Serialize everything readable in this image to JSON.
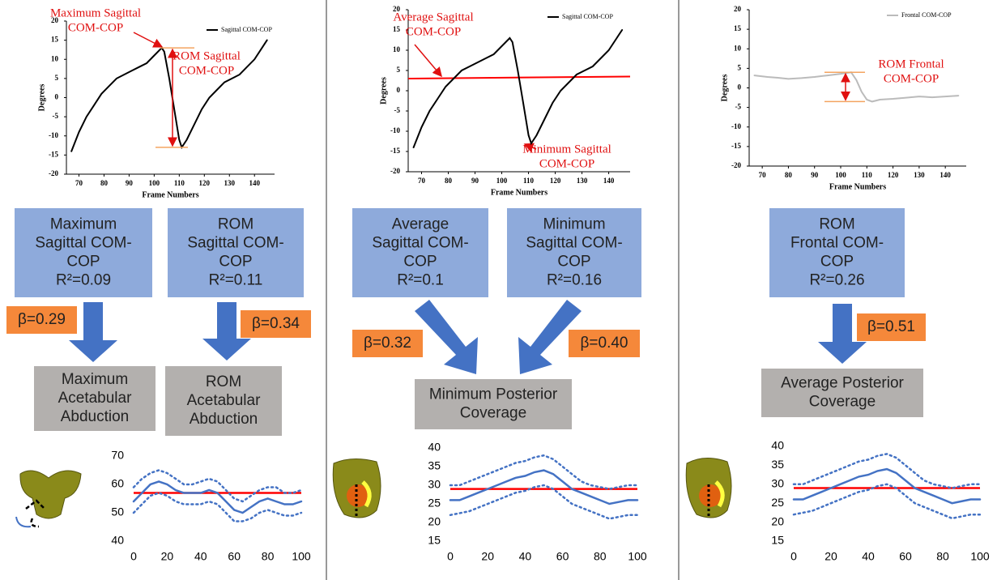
{
  "chart_data": [
    {
      "type": "line",
      "xlabel": "Frame Numbers",
      "ylabel": "Degrees",
      "legend": "upper right",
      "x": [
        67,
        70,
        73,
        76,
        79,
        82,
        85,
        88,
        91,
        94,
        97,
        100,
        103,
        104,
        106,
        108,
        110,
        111,
        113,
        116,
        119,
        122,
        125,
        128,
        131,
        134,
        137,
        140,
        143,
        145
      ],
      "series": [
        {
          "name": "Sagittal COM-COP",
          "color": "#000000",
          "values": [
            -14,
            -9,
            -5,
            -2,
            1,
            3,
            5,
            6,
            7,
            8,
            9,
            11,
            13,
            12,
            5,
            -3,
            -11,
            -13,
            -11,
            -7,
            -3,
            0,
            2,
            4,
            5,
            6,
            8,
            10,
            13,
            15
          ]
        }
      ],
      "xlim": [
        65,
        148
      ],
      "ylim": [
        -20,
        20
      ],
      "xticks": [
        70,
        80,
        90,
        100,
        110,
        120,
        130,
        140
      ],
      "yticks": [
        -20,
        -15,
        -10,
        -5,
        0,
        5,
        10,
        15,
        20
      ],
      "range_marks": {
        "values": [
          13,
          -13
        ],
        "color": "#f4a460"
      },
      "annotations": [
        {
          "lines": [
            "Maximum Sagittal",
            "COM-COP"
          ],
          "color": "#e01010"
        },
        {
          "lines": [
            "ROM  Sagittal",
            "COM-COP"
          ],
          "color": "#e01010"
        }
      ]
    },
    {
      "type": "line",
      "xlabel": "Frame Numbers",
      "ylabel": "Degrees",
      "legend": "upper right",
      "x": [
        67,
        70,
        73,
        76,
        79,
        82,
        85,
        88,
        91,
        94,
        97,
        100,
        103,
        104,
        106,
        108,
        110,
        111,
        113,
        116,
        119,
        122,
        125,
        128,
        131,
        134,
        137,
        140,
        143,
        145
      ],
      "series": [
        {
          "name": "Sagittal COM-COP",
          "color": "#000000",
          "values": [
            -14,
            -9,
            -5,
            -2,
            1,
            3,
            5,
            6,
            7,
            8,
            9,
            11,
            13,
            12,
            5,
            -3,
            -11,
            -13,
            -11,
            -7,
            -3,
            0,
            2,
            4,
            5,
            6,
            8,
            10,
            13,
            15
          ]
        }
      ],
      "xlim": [
        65,
        148
      ],
      "ylim": [
        -20,
        20
      ],
      "xticks": [
        70,
        80,
        90,
        100,
        110,
        120,
        130,
        140
      ],
      "yticks": [
        -20,
        -15,
        -10,
        -5,
        0,
        5,
        10,
        15,
        20
      ],
      "reference_line": {
        "values": [
          3,
          3.5
        ],
        "color": "#ff0000"
      },
      "annotations": [
        {
          "lines": [
            "Average Sagittal",
            "COM-COP"
          ],
          "color": "#e01010"
        },
        {
          "lines": [
            "Minimum Sagittal",
            "COM-COP"
          ],
          "color": "#e01010"
        }
      ]
    },
    {
      "type": "line",
      "xlabel": "Frame Numbers",
      "ylabel": "Degrees",
      "legend": "upper right",
      "x": [
        67,
        72,
        76,
        80,
        85,
        90,
        95,
        100,
        104,
        106,
        108,
        110,
        112,
        115,
        120,
        125,
        130,
        135,
        140,
        145
      ],
      "series": [
        {
          "name": "Frontal COM-COP",
          "color": "#bbbbbb",
          "values": [
            3.2,
            2.8,
            2.6,
            2.3,
            2.5,
            2.8,
            3.2,
            3.6,
            4,
            2,
            -1,
            -3,
            -3.5,
            -3,
            -2.8,
            -2.5,
            -2.2,
            -2.4,
            -2.2,
            -2
          ]
        }
      ],
      "xlim": [
        65,
        148
      ],
      "ylim": [
        -20,
        20
      ],
      "xticks": [
        70,
        80,
        90,
        100,
        110,
        120,
        130,
        140
      ],
      "yticks": [
        -20,
        -15,
        -10,
        -5,
        0,
        5,
        10,
        15,
        20
      ],
      "range_marks": {
        "values": [
          4,
          -3.5
        ],
        "color": "#f4a460"
      },
      "annotations": [
        {
          "lines": [
            "ROM  Frontal",
            "COM-COP"
          ],
          "color": "#e01010"
        }
      ]
    },
    {
      "type": "line",
      "x": [
        0,
        5,
        10,
        15,
        20,
        25,
        30,
        35,
        40,
        45,
        50,
        55,
        60,
        65,
        70,
        75,
        80,
        85,
        90,
        95,
        100
      ],
      "series": [
        {
          "color": "#4472c4",
          "values": [
            54,
            57,
            60,
            61,
            60,
            58,
            57,
            57,
            57,
            58,
            57,
            54,
            51,
            50,
            52,
            54,
            55,
            54,
            53,
            53,
            54
          ]
        },
        {
          "color": "#4472c4",
          "dash": "dot",
          "values": [
            59,
            62,
            64,
            65,
            64,
            62,
            60,
            60,
            61,
            62,
            61,
            58,
            55,
            54,
            56,
            58,
            59,
            59,
            57,
            57,
            58
          ]
        },
        {
          "color": "#4472c4",
          "dash": "dot",
          "values": [
            50,
            53,
            56,
            57,
            56,
            54,
            53,
            53,
            53,
            54,
            53,
            50,
            47,
            47,
            48,
            50,
            51,
            50,
            49,
            49,
            50
          ]
        }
      ],
      "reference_line": {
        "values": [
          57,
          57
        ],
        "color": "#ff0000"
      },
      "xlim": [
        0,
        100
      ],
      "ylim": [
        40,
        70
      ],
      "xticks": [
        0,
        20,
        40,
        60,
        80,
        100
      ],
      "yticks": [
        40,
        50,
        60,
        70
      ]
    },
    {
      "type": "line",
      "x": [
        0,
        5,
        10,
        15,
        20,
        25,
        30,
        35,
        40,
        45,
        50,
        55,
        60,
        65,
        70,
        75,
        80,
        85,
        90,
        95,
        100
      ],
      "series": [
        {
          "color": "#4472c4",
          "values": [
            26,
            26,
            27,
            28,
            29,
            30,
            31,
            32,
            32.5,
            33.5,
            34,
            33,
            31,
            29,
            28,
            27,
            26,
            25,
            25.5,
            26,
            26
          ]
        },
        {
          "color": "#4472c4",
          "dash": "dot",
          "values": [
            30,
            30,
            31,
            32,
            33,
            34,
            35,
            36,
            36.5,
            37.5,
            38,
            37,
            35,
            33,
            31,
            30,
            29.5,
            29,
            29.5,
            30,
            30
          ]
        },
        {
          "color": "#4472c4",
          "dash": "dot",
          "values": [
            22,
            22.5,
            23,
            24,
            25,
            26,
            27,
            28,
            28.5,
            29.5,
            30,
            29,
            27,
            25,
            24,
            23,
            22,
            21,
            21.5,
            22,
            22
          ]
        }
      ],
      "reference_line": {
        "values": [
          29,
          29
        ],
        "color": "#ff0000"
      },
      "xlim": [
        0,
        100
      ],
      "ylim": [
        15,
        40
      ],
      "xticks": [
        0,
        20,
        40,
        60,
        80,
        100
      ],
      "yticks": [
        15,
        20,
        25,
        30,
        35,
        40
      ]
    },
    {
      "type": "line",
      "x": [
        0,
        5,
        10,
        15,
        20,
        25,
        30,
        35,
        40,
        45,
        50,
        55,
        60,
        65,
        70,
        75,
        80,
        85,
        90,
        95,
        100
      ],
      "series": [
        {
          "color": "#4472c4",
          "values": [
            26,
            26,
            27,
            28,
            29,
            30,
            31,
            32,
            32.5,
            33.5,
            34,
            33,
            31,
            29,
            28,
            27,
            26,
            25,
            25.5,
            26,
            26
          ]
        },
        {
          "color": "#4472c4",
          "dash": "dot",
          "values": [
            30,
            30,
            31,
            32,
            33,
            34,
            35,
            36,
            36.5,
            37.5,
            38,
            37,
            35,
            33,
            31,
            30,
            29.5,
            29,
            29.5,
            30,
            30
          ]
        },
        {
          "color": "#4472c4",
          "dash": "dot",
          "values": [
            22,
            22.5,
            23,
            24,
            25,
            26,
            27,
            28,
            28.5,
            29.5,
            30,
            29,
            27,
            25,
            24,
            23,
            22,
            21,
            21.5,
            22,
            22
          ]
        }
      ],
      "reference_line": {
        "values": [
          29,
          29
        ],
        "color": "#ff0000"
      },
      "xlim": [
        0,
        100
      ],
      "ylim": [
        15,
        40
      ],
      "xticks": [
        0,
        20,
        40,
        60,
        80,
        100
      ],
      "yticks": [
        15,
        20,
        25,
        30,
        35,
        40
      ]
    }
  ],
  "diagram": {
    "panels": [
      {
        "predictors": [
          {
            "lines": [
              "Maximum",
              "Sagittal COM-",
              "COP",
              "R²=0.09"
            ]
          },
          {
            "lines": [
              "ROM",
              "Sagittal COM-",
              "COP",
              "R²=0.11"
            ]
          }
        ],
        "betas": [
          "β=0.29",
          "β=0.34"
        ],
        "outcomes": [
          {
            "lines": [
              "Maximum",
              "Acetabular",
              "Abduction"
            ]
          },
          {
            "lines": [
              "ROM",
              "Acetabular",
              "Abduction"
            ]
          }
        ]
      },
      {
        "predictors": [
          {
            "lines": [
              "Average",
              "Sagittal COM-",
              "COP",
              "R²=0.1"
            ]
          },
          {
            "lines": [
              "Minimum",
              "Sagittal COM-",
              "COP",
              "R²=0.16"
            ]
          }
        ],
        "betas": [
          "β=0.32",
          "β=0.40"
        ],
        "outcomes": [
          {
            "lines": [
              "Minimum Posterior",
              "Coverage"
            ]
          }
        ]
      },
      {
        "predictors": [
          {
            "lines": [
              "ROM",
              "Frontal COM-",
              "COP",
              "R²=0.26"
            ]
          }
        ],
        "betas": [
          "β=0.51"
        ],
        "outcomes": [
          {
            "lines": [
              "Average Posterior",
              "Coverage"
            ]
          }
        ]
      }
    ]
  }
}
